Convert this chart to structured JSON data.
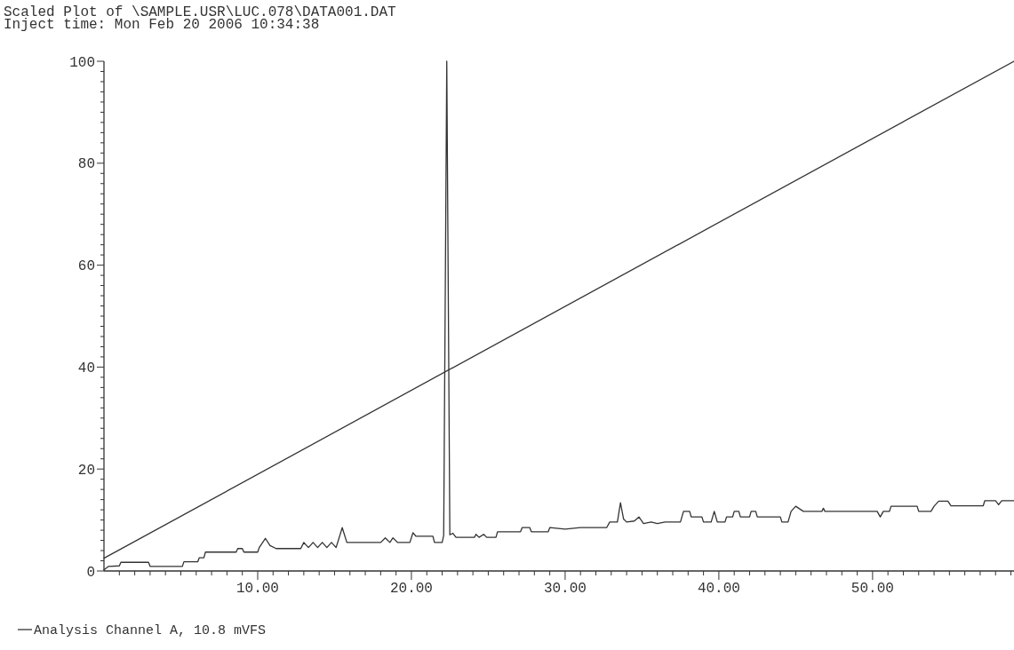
{
  "chart_data": {
    "type": "line",
    "title": "Scaled Plot of \\SAMPLE.USR\\LUC.078\\DATA001.DAT",
    "subtitle": "Inject time: Mon Feb 20 2006 10:34:38",
    "xlim": [
      0,
      59.2
    ],
    "ylim": [
      0,
      100
    ],
    "xticks": [
      {
        "value": 1,
        "label": null
      },
      {
        "value": 2,
        "label": null
      },
      {
        "value": 3,
        "label": null
      },
      {
        "value": 4,
        "label": null
      },
      {
        "value": 5,
        "label": null
      },
      {
        "value": 6,
        "label": null
      },
      {
        "value": 7,
        "label": null
      },
      {
        "value": 8,
        "label": null
      },
      {
        "value": 9,
        "label": null
      },
      {
        "value": 10,
        "label": "10.00"
      },
      {
        "value": 11,
        "label": null
      },
      {
        "value": 12,
        "label": null
      },
      {
        "value": 13,
        "label": null
      },
      {
        "value": 14,
        "label": null
      },
      {
        "value": 15,
        "label": null
      },
      {
        "value": 16,
        "label": null
      },
      {
        "value": 17,
        "label": null
      },
      {
        "value": 18,
        "label": null
      },
      {
        "value": 19,
        "label": null
      },
      {
        "value": 20,
        "label": "20.00"
      },
      {
        "value": 21,
        "label": null
      },
      {
        "value": 22,
        "label": null
      },
      {
        "value": 23,
        "label": null
      },
      {
        "value": 24,
        "label": null
      },
      {
        "value": 25,
        "label": null
      },
      {
        "value": 26,
        "label": null
      },
      {
        "value": 27,
        "label": null
      },
      {
        "value": 28,
        "label": null
      },
      {
        "value": 29,
        "label": null
      },
      {
        "value": 30,
        "label": "30.00"
      },
      {
        "value": 31,
        "label": null
      },
      {
        "value": 32,
        "label": null
      },
      {
        "value": 33,
        "label": null
      },
      {
        "value": 34,
        "label": null
      },
      {
        "value": 35,
        "label": null
      },
      {
        "value": 36,
        "label": null
      },
      {
        "value": 37,
        "label": null
      },
      {
        "value": 38,
        "label": null
      },
      {
        "value": 39,
        "label": null
      },
      {
        "value": 40,
        "label": "40.00"
      },
      {
        "value": 41,
        "label": null
      },
      {
        "value": 42,
        "label": null
      },
      {
        "value": 43,
        "label": null
      },
      {
        "value": 44,
        "label": null
      },
      {
        "value": 45,
        "label": null
      },
      {
        "value": 46,
        "label": null
      },
      {
        "value": 47,
        "label": null
      },
      {
        "value": 48,
        "label": null
      },
      {
        "value": 49,
        "label": null
      },
      {
        "value": 50,
        "label": "50.00"
      },
      {
        "value": 51,
        "label": null
      },
      {
        "value": 52,
        "label": null
      },
      {
        "value": 53,
        "label": null
      },
      {
        "value": 54,
        "label": null
      },
      {
        "value": 55,
        "label": null
      },
      {
        "value": 56,
        "label": null
      },
      {
        "value": 57,
        "label": null
      },
      {
        "value": 58,
        "label": null
      },
      {
        "value": 59,
        "label": null
      }
    ],
    "yticks": [
      0,
      {
        "value": 2,
        "label": null
      },
      {
        "value": 4,
        "label": null
      },
      {
        "value": 6,
        "label": null
      },
      {
        "value": 8,
        "label": null
      },
      {
        "value": 10,
        "label": null
      },
      {
        "value": 12,
        "label": null
      },
      {
        "value": 14,
        "label": null
      },
      {
        "value": 16,
        "label": null
      },
      {
        "value": 18,
        "label": null
      },
      20,
      {
        "value": 22,
        "label": null
      },
      {
        "value": 24,
        "label": null
      },
      {
        "value": 26,
        "label": null
      },
      {
        "value": 28,
        "label": null
      },
      {
        "value": 30,
        "label": null
      },
      {
        "value": 32,
        "label": null
      },
      {
        "value": 34,
        "label": null
      },
      {
        "value": 36,
        "label": null
      },
      {
        "value": 38,
        "label": null
      },
      40,
      {
        "value": 42,
        "label": null
      },
      {
        "value": 44,
        "label": null
      },
      {
        "value": 46,
        "label": null
      },
      {
        "value": 48,
        "label": null
      },
      {
        "value": 50,
        "label": null
      },
      {
        "value": 52,
        "label": null
      },
      {
        "value": 54,
        "label": null
      },
      {
        "value": 56,
        "label": null
      },
      {
        "value": 58,
        "label": null
      },
      60,
      {
        "value": 62,
        "label": null
      },
      {
        "value": 64,
        "label": null
      },
      {
        "value": 66,
        "label": null
      },
      {
        "value": 68,
        "label": null
      },
      {
        "value": 70,
        "label": null
      },
      {
        "value": 72,
        "label": null
      },
      {
        "value": 74,
        "label": null
      },
      {
        "value": 76,
        "label": null
      },
      {
        "value": 78,
        "label": null
      },
      80,
      {
        "value": 82,
        "label": null
      },
      {
        "value": 84,
        "label": null
      },
      {
        "value": 86,
        "label": null
      },
      {
        "value": 88,
        "label": null
      },
      {
        "value": 90,
        "label": null
      },
      {
        "value": 92,
        "label": null
      },
      {
        "value": 94,
        "label": null
      },
      {
        "value": 96,
        "label": null
      },
      {
        "value": 98,
        "label": null
      },
      100
    ],
    "legend": "bottom left",
    "grid": false,
    "marker": "none",
    "line_style": "solid",
    "series": [
      {
        "name": "Analysis Channel A, 10.8 mVFS",
        "color": "#333333",
        "x": [
          0,
          0.3,
          1.0,
          1.1,
          2.9,
          3.0,
          5.1,
          5.2,
          6.1,
          6.2,
          6.5,
          6.6,
          8.6,
          8.7,
          9.0,
          9.1,
          10.0,
          10.1,
          10.5,
          10.8,
          11.2,
          12.8,
          13.0,
          13.3,
          13.6,
          13.9,
          14.2,
          14.5,
          14.8,
          15.1,
          15.5,
          15.8,
          18.0,
          18.3,
          18.6,
          18.8,
          19.1,
          19.9,
          20.1,
          20.3,
          21.4,
          21.5,
          22.0,
          22.1,
          22.3,
          22.5,
          22.7,
          22.9,
          24.1,
          24.2,
          24.4,
          24.7,
          24.9,
          25.5,
          25.6,
          27.1,
          27.2,
          27.7,
          27.8,
          28.9,
          29.0,
          30.0,
          31.0,
          32.7,
          32.9,
          33.4,
          33.6,
          33.8,
          34.0,
          34.5,
          34.8,
          35.1,
          35.6,
          36.0,
          36.5,
          37.5,
          37.7,
          38.1,
          38.2,
          38.9,
          39.0,
          39.5,
          39.7,
          39.9,
          40.4,
          40.5,
          40.9,
          41.0,
          41.3,
          41.4,
          42.0,
          42.1,
          42.4,
          42.5,
          44.0,
          44.1,
          44.5,
          44.7,
          45.0,
          45.5,
          46.7,
          46.8,
          46.9,
          50.3,
          50.5,
          50.7,
          51.1,
          51.2,
          52.9,
          53.0,
          53.8,
          54.0,
          54.3,
          54.9,
          55.1,
          57.2,
          57.3,
          58.0,
          58.2,
          58.4,
          59.2
        ],
        "values": [
          0.2,
          0.9,
          1.0,
          1.7,
          1.7,
          0.9,
          0.9,
          1.8,
          1.8,
          2.6,
          2.6,
          3.7,
          3.7,
          4.4,
          4.4,
          3.7,
          3.7,
          4.6,
          6.4,
          5.0,
          4.4,
          4.4,
          5.6,
          4.6,
          5.6,
          4.6,
          5.6,
          4.6,
          5.6,
          4.6,
          8.5,
          5.6,
          5.6,
          6.5,
          5.6,
          6.5,
          5.6,
          5.6,
          7.5,
          6.8,
          6.8,
          5.6,
          5.6,
          7.0,
          100,
          7.1,
          7.4,
          6.6,
          6.6,
          7.2,
          6.6,
          7.2,
          6.6,
          6.6,
          7.7,
          7.7,
          8.5,
          8.5,
          7.7,
          7.7,
          8.5,
          8.2,
          8.5,
          8.5,
          9.6,
          9.6,
          13.4,
          10.2,
          9.6,
          9.8,
          10.6,
          9.3,
          9.6,
          9.3,
          9.6,
          9.6,
          11.7,
          11.7,
          10.6,
          10.6,
          9.6,
          9.6,
          11.7,
          9.6,
          9.6,
          10.6,
          10.6,
          11.7,
          11.7,
          10.6,
          10.6,
          11.7,
          11.7,
          10.6,
          10.6,
          9.6,
          9.6,
          11.7,
          12.7,
          11.7,
          11.7,
          12.3,
          11.7,
          11.7,
          10.6,
          11.7,
          11.7,
          12.7,
          12.7,
          11.7,
          11.7,
          12.7,
          13.7,
          13.7,
          12.8,
          12.8,
          13.8,
          13.8,
          13.0,
          13.8,
          13.8
        ]
      },
      {
        "color": "#333333",
        "x": [
          0,
          59.2
        ],
        "values": [
          2.5,
          100
        ]
      }
    ]
  }
}
